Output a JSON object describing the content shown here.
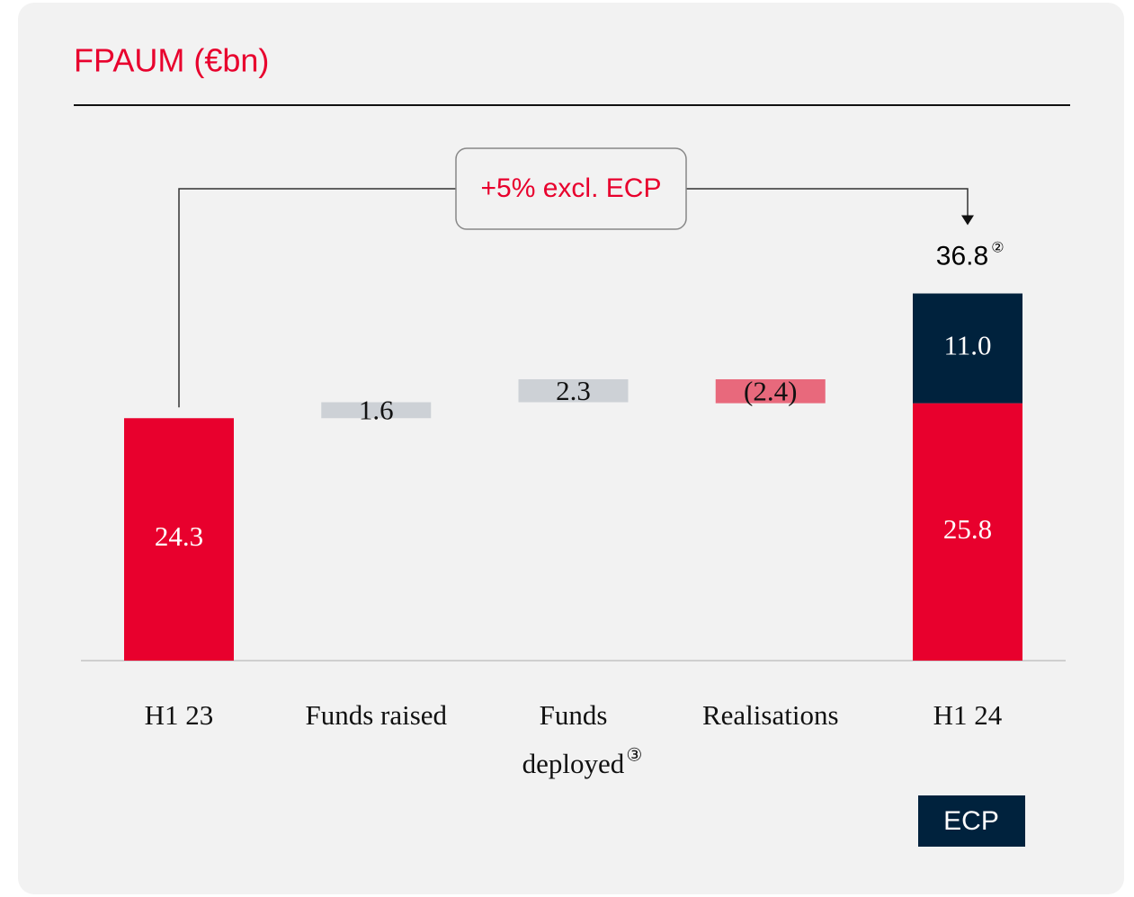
{
  "chart_data": {
    "type": "waterfall",
    "title": "FPAUM (€bn)",
    "categories": [
      "H1 23",
      "Funds raised",
      [
        "Funds",
        "deployed"
      ],
      "Realisations",
      "H1 24"
    ],
    "category_footnotes": [
      null,
      null,
      "③",
      null,
      null
    ],
    "values": [
      24.3,
      1.6,
      2.3,
      -2.4,
      null
    ],
    "value_labels": [
      null,
      null,
      null,
      "(2.4)",
      null
    ],
    "colors": [
      "#e8002d",
      "#cdd1d6",
      "#cdd1d6",
      "#e8697c",
      null
    ],
    "total": {
      "value": 36.8,
      "footnote": "②"
    },
    "total_segments": [
      {
        "value": 25.8,
        "color": "#e8002d"
      },
      {
        "name": "ECP",
        "value": 11.0,
        "value_label": "11.0",
        "color": "#00223d"
      }
    ],
    "annotation": "+5% excl. ECP",
    "ylim": [
      0,
      40
    ]
  }
}
